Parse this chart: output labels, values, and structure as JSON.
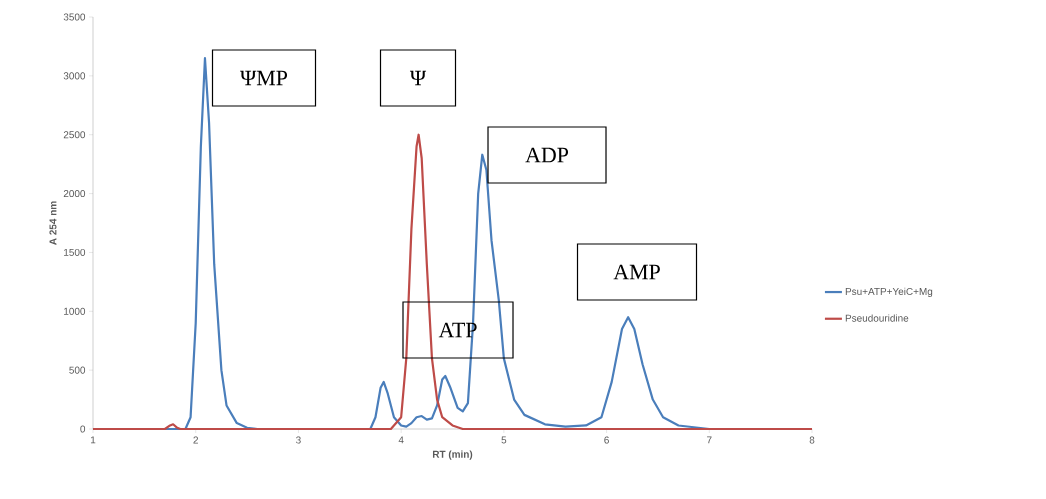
{
  "chart_data": {
    "type": "line",
    "xlabel": "RT (min)",
    "ylabel": "A 254 nm",
    "xlim": [
      1,
      8
    ],
    "xticks": [
      1,
      2,
      3,
      4,
      5,
      6,
      7,
      8
    ],
    "ylim": [
      0,
      3500
    ],
    "yticks": [
      0,
      500,
      1000,
      1500,
      2000,
      2500,
      3000,
      3500
    ],
    "legend": "right",
    "marker": "none",
    "line_style": "solid",
    "series": [
      {
        "name": "Psu+ATP+YeiC+Mg",
        "color": "#4a7ebb",
        "x": [
          1,
          1.9,
          1.95,
          2.0,
          2.05,
          2.09,
          2.13,
          2.18,
          2.25,
          2.3,
          2.4,
          2.5,
          2.6,
          3.7,
          3.75,
          3.8,
          3.83,
          3.87,
          3.93,
          4.0,
          4.05,
          4.1,
          4.15,
          4.2,
          4.25,
          4.3,
          4.35,
          4.4,
          4.43,
          4.48,
          4.55,
          4.6,
          4.65,
          4.7,
          4.75,
          4.79,
          4.83,
          4.88,
          4.95,
          5.0,
          5.1,
          5.2,
          5.4,
          5.6,
          5.8,
          5.95,
          6.05,
          6.15,
          6.21,
          6.27,
          6.35,
          6.45,
          6.55,
          6.7,
          7.0,
          8
        ],
        "values": [
          0,
          0,
          100,
          900,
          2400,
          3150,
          2600,
          1400,
          500,
          200,
          50,
          10,
          0,
          0,
          100,
          350,
          400,
          300,
          100,
          30,
          20,
          50,
          100,
          110,
          80,
          90,
          200,
          420,
          450,
          350,
          180,
          150,
          220,
          900,
          2000,
          2330,
          2200,
          1600,
          1100,
          600,
          250,
          120,
          40,
          20,
          30,
          100,
          400,
          850,
          950,
          850,
          550,
          250,
          100,
          30,
          0,
          0
        ]
      },
      {
        "name": "Pseudouridine",
        "color": "#be4b48",
        "x": [
          1,
          1.7,
          1.75,
          1.78,
          1.82,
          1.85,
          3.9,
          4.0,
          4.05,
          4.1,
          4.15,
          4.17,
          4.2,
          4.25,
          4.3,
          4.35,
          4.4,
          4.5,
          4.6,
          8
        ],
        "values": [
          0,
          0,
          30,
          40,
          10,
          0,
          0,
          100,
          600,
          1700,
          2400,
          2500,
          2300,
          1400,
          600,
          250,
          100,
          30,
          0,
          0
        ]
      }
    ],
    "annotations": [
      "ΨMP",
      "Ψ",
      "ADP",
      "ATP",
      "AMP"
    ]
  }
}
